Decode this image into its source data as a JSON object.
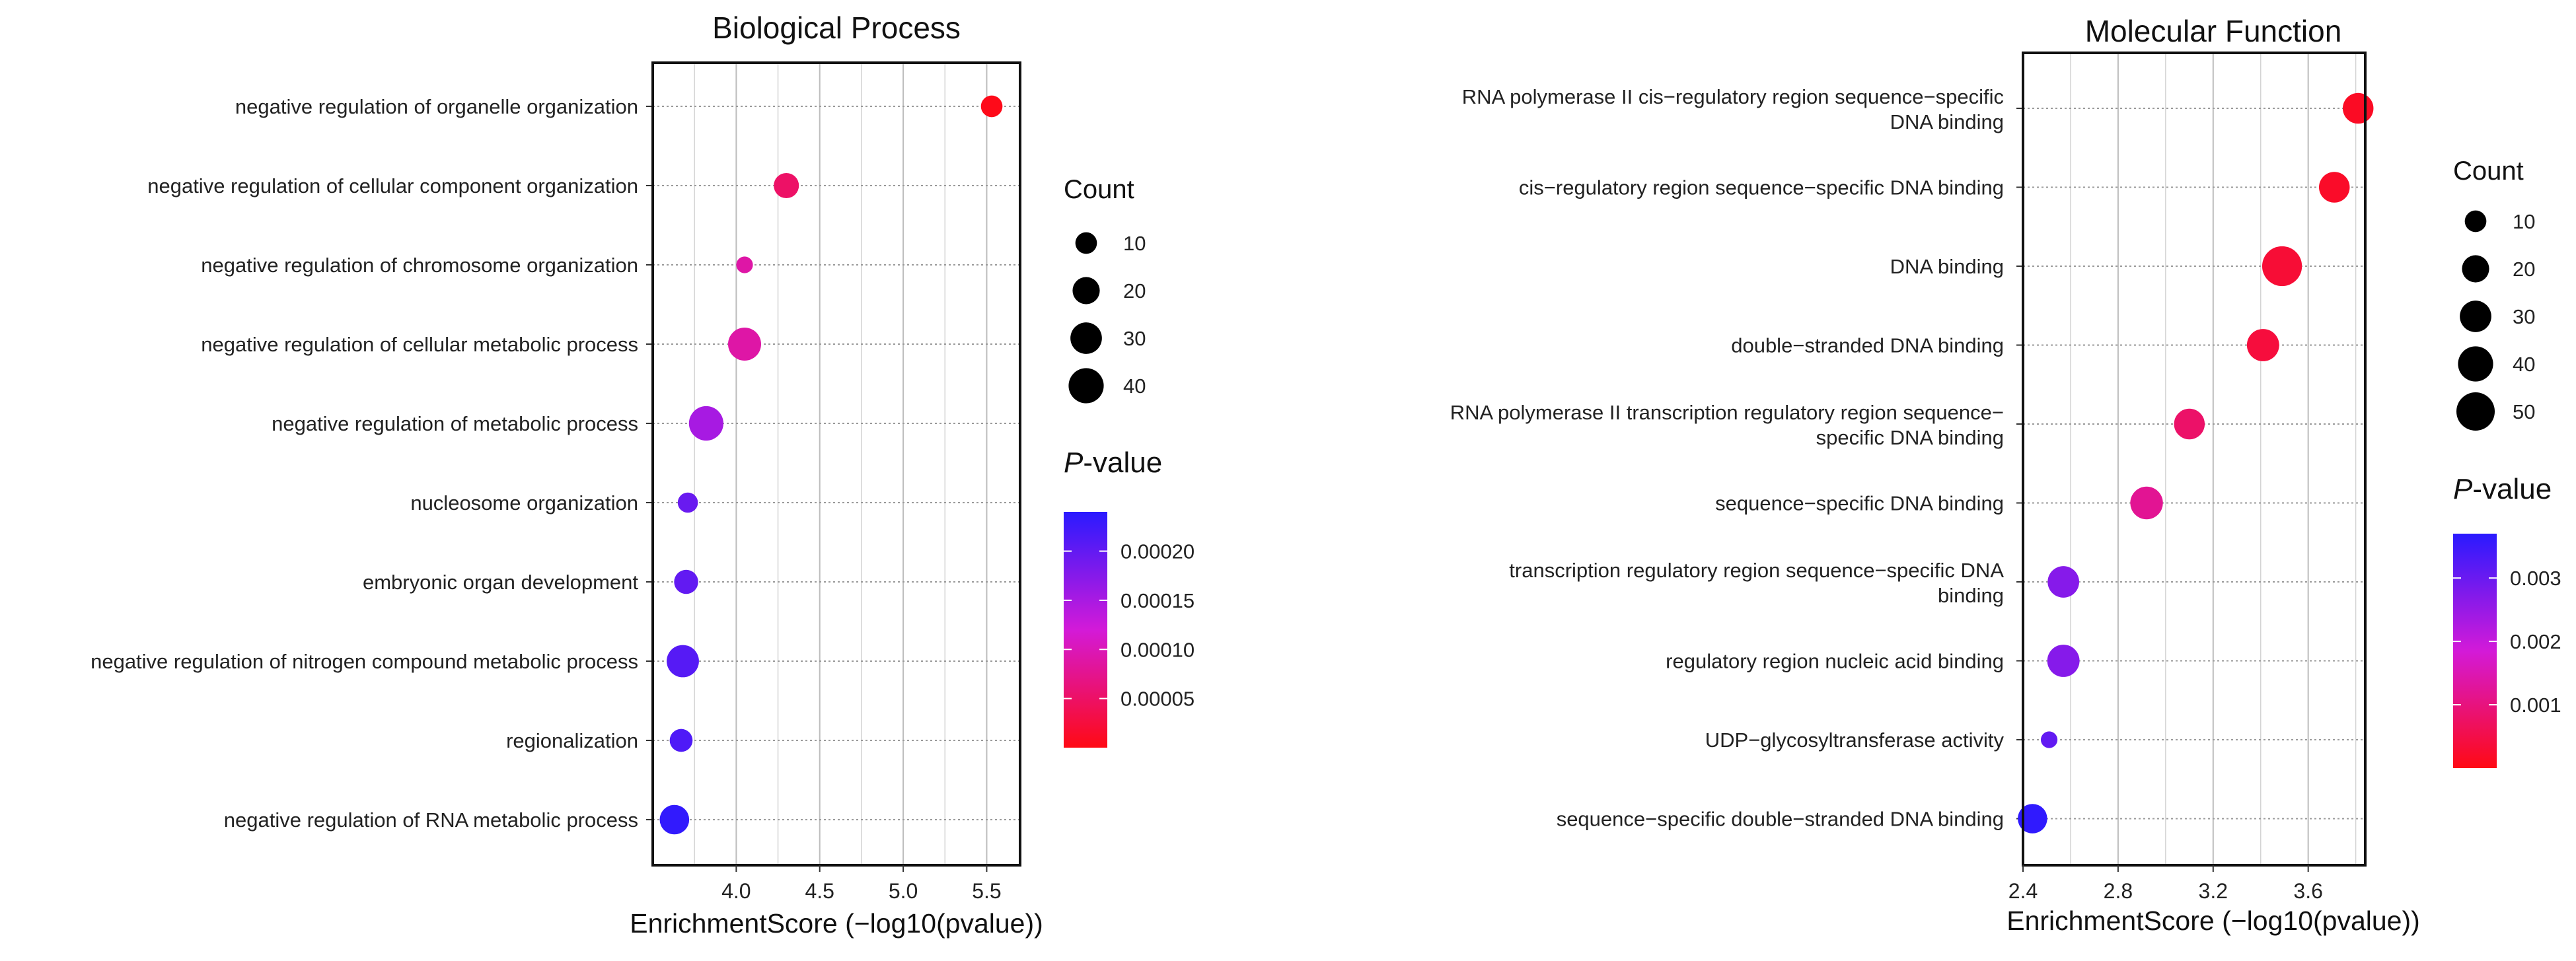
{
  "chart_data": [
    {
      "type": "scatter",
      "title": "Biological Process",
      "xlabel": "EnrichmentScore (−log10(pvalue))",
      "ylabel": "",
      "xlim": [
        3.5,
        5.7
      ],
      "xticks": [
        "4.0",
        "4.5",
        "5.0",
        "5.5"
      ],
      "grid": true,
      "categories": [
        "negative regulation of organelle organization",
        "negative regulation of cellular component organization",
        "negative regulation of chromosome organization",
        "negative regulation of cellular metabolic process",
        "negative regulation of metabolic process",
        "nucleosome organization",
        "embryonic organ development",
        "negative regulation of nitrogen compound metabolic process",
        "regionalization",
        "negative regulation of RNA metabolic process"
      ],
      "x": [
        5.53,
        4.3,
        4.05,
        4.05,
        3.82,
        3.71,
        3.7,
        3.68,
        3.67,
        3.63
      ],
      "count": [
        10,
        16,
        4,
        34,
        38,
        8,
        14,
        32,
        12,
        25
      ],
      "pvalue": [
        3e-06,
        5.01e-05,
        8.91e-05,
        8.91e-05,
        0.000151,
        0.000195,
        0.0002,
        0.000209,
        0.000214,
        0.000234
      ],
      "size_legend": {
        "title": "Count",
        "values": [
          10,
          20,
          30,
          40
        ],
        "labels": [
          "10",
          "20",
          "30",
          "40"
        ]
      },
      "color_legend": {
        "title_prefix": "P",
        "title_suffix": "-value",
        "min": 0.0,
        "max": 0.00024,
        "ticks": [
          5e-05,
          0.0001,
          0.00015,
          0.0002
        ],
        "labels": [
          "0.00005",
          "0.00010",
          "0.00015",
          "0.00020"
        ],
        "low_color": "#ff0a14",
        "mid_color": "#d31ad8",
        "high_color": "#2a1aff"
      }
    },
    {
      "type": "scatter",
      "title": "Molecular Function",
      "xlabel": "EnrichmentScore (−log10(pvalue))",
      "ylabel": "",
      "xlim": [
        2.4,
        3.84
      ],
      "xticks": [
        "2.4",
        "2.8",
        "3.2",
        "3.6"
      ],
      "grid": true,
      "categories": [
        [
          "RNA polymerase II cis−regulatory region sequence−specific",
          "DNA binding"
        ],
        [
          "cis−regulatory region sequence−specific DNA binding"
        ],
        [
          "DNA binding"
        ],
        [
          "double−stranded DNA binding"
        ],
        [
          "RNA polymerase II transcription regulatory region sequence−",
          "specific DNA binding"
        ],
        [
          "sequence−specific DNA binding"
        ],
        [
          "transcription regulatory region sequence−specific DNA",
          "binding"
        ],
        [
          "regulatory region nucleic acid binding"
        ],
        [
          "UDP−glycosyltransferase activity"
        ],
        [
          "sequence−specific double−stranded DNA binding"
        ]
      ],
      "x": [
        3.81,
        3.71,
        3.49,
        3.41,
        3.1,
        2.92,
        2.57,
        2.57,
        2.51,
        2.44
      ],
      "count": [
        28,
        28,
        55,
        32,
        28,
        33,
        30,
        32,
        4,
        25
      ],
      "pvalue": [
        0.000155,
        0.000195,
        0.000324,
        0.000389,
        0.000794,
        0.0012,
        0.00269,
        0.00269,
        0.00309,
        0.00363
      ],
      "size_legend": {
        "title": "Count",
        "values": [
          10,
          20,
          30,
          40,
          50
        ],
        "labels": [
          "10",
          "20",
          "30",
          "40",
          "50"
        ]
      },
      "color_legend": {
        "title_prefix": "P",
        "title_suffix": "-value",
        "min": 0.0,
        "max": 0.0037,
        "ticks": [
          0.001,
          0.002,
          0.003
        ],
        "labels": [
          "0.001",
          "0.002",
          "0.003"
        ],
        "low_color": "#ff0a14",
        "mid_color": "#d31ad8",
        "high_color": "#2a1aff"
      }
    }
  ]
}
